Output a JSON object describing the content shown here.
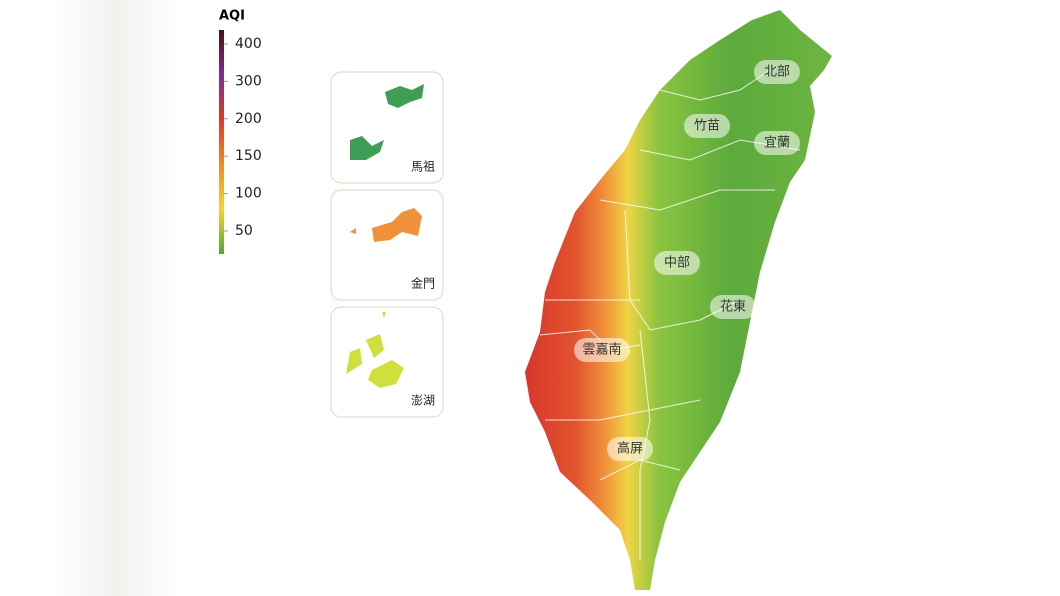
{
  "legend": {
    "title": "AQI",
    "ticks": [
      400,
      300,
      200,
      150,
      100,
      50
    ],
    "colors": [
      "#4a0f12",
      "#7a2f8f",
      "#d93a2c",
      "#f08a2f",
      "#f2d43a",
      "#4fa83e"
    ]
  },
  "insets": [
    "馬祖",
    "金門",
    "澎湖"
  ],
  "regions": [
    "北部",
    "竹苗",
    "宜蘭",
    "中部",
    "花東",
    "雲嘉南",
    "高屏"
  ]
}
